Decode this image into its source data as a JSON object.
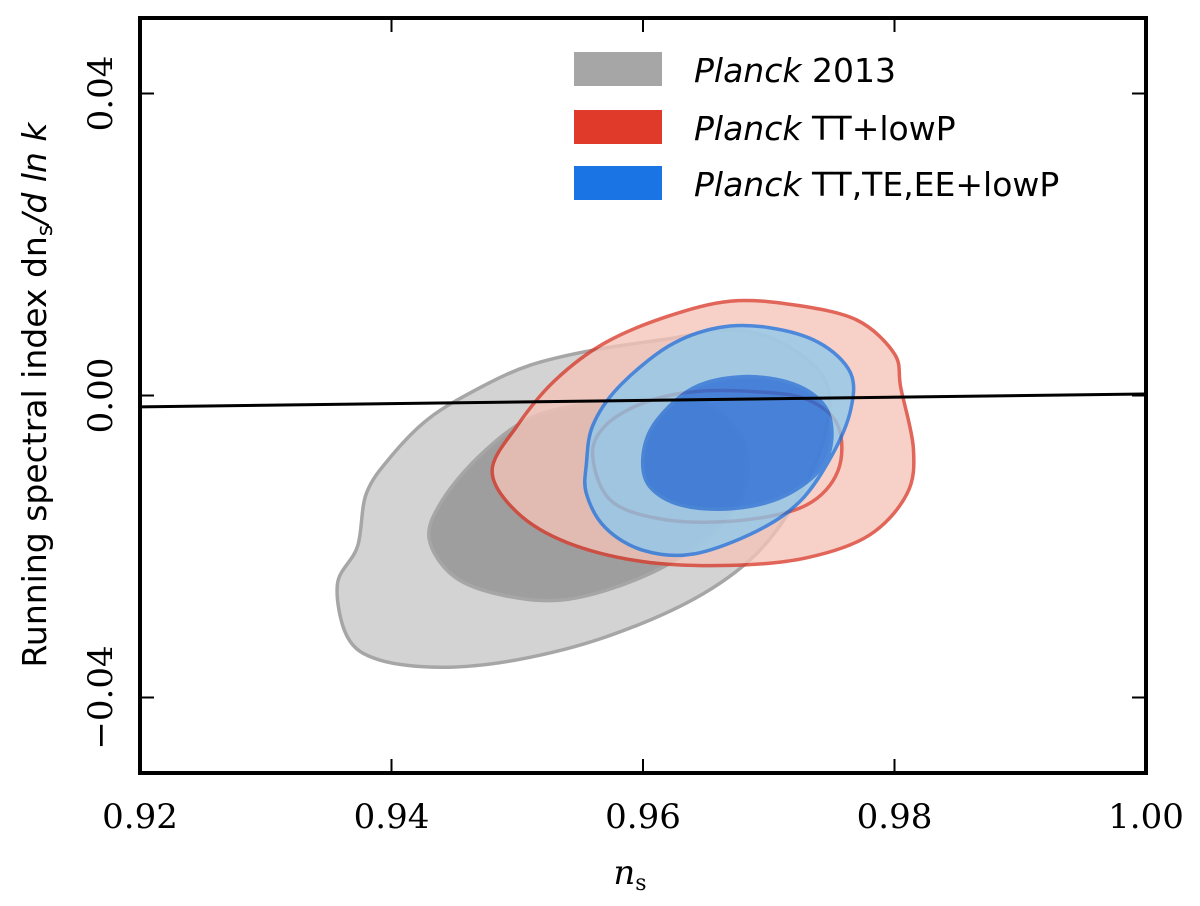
{
  "chart_data": {
    "type": "contour",
    "xlabel": "n",
    "xlabel_subscript": "s",
    "ylabel": "Running spectral index dn",
    "ylabel_subscript": "s",
    "ylabel_suffix": "/d ln k",
    "xlim": [
      0.92,
      1.0
    ],
    "ylim": [
      -0.05,
      0.05
    ],
    "xticks": [
      0.92,
      0.94,
      0.96,
      0.98,
      1.0
    ],
    "xtick_labels": [
      "0.92",
      "0.94",
      "0.96",
      "0.98",
      "1.00"
    ],
    "yticks": [
      -0.04,
      0.0,
      0.04
    ],
    "ytick_labels": [
      "−0.04",
      "0.00",
      "0.04"
    ],
    "reference_line": {
      "x": [
        0.92,
        1.0
      ],
      "y": [
        -0.0015,
        0.0002
      ]
    },
    "legend": [
      {
        "italic": "Planck",
        "text": " 2013",
        "color": "#a6a6a6"
      },
      {
        "italic": "Planck",
        "text": " TT+lowP",
        "color": "#e03a2a"
      },
      {
        "italic": "Planck",
        "text": " TT,TE,EE+lowP",
        "color": "#1a74e3"
      }
    ],
    "series": [
      {
        "name": "Planck 2013",
        "line_color": "#a6a6a6",
        "outer_fill": "#d3d3d3",
        "inner_fill": "#9e9e9e",
        "outer_2sigma": [
          [
            0.9357,
            -0.025
          ],
          [
            0.9373,
            -0.02
          ],
          [
            0.938,
            -0.013
          ],
          [
            0.94,
            -0.008
          ],
          [
            0.943,
            -0.003
          ],
          [
            0.947,
            0.001
          ],
          [
            0.951,
            0.004
          ],
          [
            0.956,
            0.006
          ],
          [
            0.962,
            0.0075
          ],
          [
            0.967,
            0.0087
          ],
          [
            0.971,
            0.007
          ],
          [
            0.9745,
            0.002
          ],
          [
            0.9745,
            -0.005
          ],
          [
            0.9725,
            -0.013
          ],
          [
            0.969,
            -0.021
          ],
          [
            0.964,
            -0.027
          ],
          [
            0.957,
            -0.032
          ],
          [
            0.95,
            -0.035
          ],
          [
            0.944,
            -0.036
          ],
          [
            0.939,
            -0.035
          ],
          [
            0.9365,
            -0.032
          ],
          [
            0.9357,
            -0.025
          ]
        ],
        "inner_1sigma": [
          [
            0.943,
            -0.019
          ],
          [
            0.944,
            -0.014
          ],
          [
            0.947,
            -0.008
          ],
          [
            0.951,
            -0.003
          ],
          [
            0.956,
            -0.001
          ],
          [
            0.961,
            -0.0003
          ],
          [
            0.965,
            -0.001
          ],
          [
            0.968,
            -0.006
          ],
          [
            0.968,
            -0.013
          ],
          [
            0.965,
            -0.019
          ],
          [
            0.96,
            -0.024
          ],
          [
            0.954,
            -0.027
          ],
          [
            0.949,
            -0.0265
          ],
          [
            0.945,
            -0.024
          ],
          [
            0.943,
            -0.019
          ]
        ]
      },
      {
        "name": "Planck TT+lowP",
        "line_color": "#d93a2b",
        "outer_fill": "#f5c4b8",
        "inner_fill": "none",
        "outer_2sigma": [
          [
            0.948,
            -0.01
          ],
          [
            0.95,
            -0.004
          ],
          [
            0.953,
            0.002
          ],
          [
            0.957,
            0.007
          ],
          [
            0.962,
            0.0105
          ],
          [
            0.967,
            0.0125
          ],
          [
            0.972,
            0.012
          ],
          [
            0.977,
            0.01
          ],
          [
            0.98,
            0.0055
          ],
          [
            0.9805,
            0.001
          ],
          [
            0.9815,
            -0.007
          ],
          [
            0.981,
            -0.013
          ],
          [
            0.978,
            -0.0185
          ],
          [
            0.973,
            -0.0215
          ],
          [
            0.967,
            -0.0225
          ],
          [
            0.96,
            -0.022
          ],
          [
            0.954,
            -0.0195
          ],
          [
            0.95,
            -0.0155
          ],
          [
            0.948,
            -0.01
          ]
        ],
        "inner_1sigma": [
          [
            0.956,
            -0.008
          ],
          [
            0.957,
            -0.004
          ],
          [
            0.96,
            -0.001
          ],
          [
            0.964,
            0.0005
          ],
          [
            0.969,
            0.0005
          ],
          [
            0.973,
            -0.0005
          ],
          [
            0.9755,
            -0.004
          ],
          [
            0.9755,
            -0.01
          ],
          [
            0.973,
            -0.0145
          ],
          [
            0.968,
            -0.0165
          ],
          [
            0.962,
            -0.0165
          ],
          [
            0.9575,
            -0.014
          ],
          [
            0.956,
            -0.008
          ]
        ]
      },
      {
        "name": "Planck TT,TE,EE+lowP",
        "line_color": "#1f75e0",
        "outer_fill": "#8ec9ed",
        "inner_fill": "#1a6fe0",
        "outer_2sigma": [
          [
            0.9555,
            -0.009
          ],
          [
            0.956,
            -0.004
          ],
          [
            0.958,
            0.001
          ],
          [
            0.962,
            0.0065
          ],
          [
            0.966,
            0.009
          ],
          [
            0.97,
            0.009
          ],
          [
            0.974,
            0.007
          ],
          [
            0.9765,
            0.003
          ],
          [
            0.9765,
            -0.002
          ],
          [
            0.975,
            -0.008
          ],
          [
            0.9725,
            -0.014
          ],
          [
            0.969,
            -0.018
          ],
          [
            0.964,
            -0.021
          ],
          [
            0.96,
            -0.0205
          ],
          [
            0.957,
            -0.0175
          ],
          [
            0.9555,
            -0.013
          ],
          [
            0.9555,
            -0.009
          ]
        ],
        "inner_1sigma": [
          [
            0.96,
            -0.008
          ],
          [
            0.961,
            -0.0035
          ],
          [
            0.964,
            0.001
          ],
          [
            0.968,
            0.0025
          ],
          [
            0.972,
            0.0015
          ],
          [
            0.9745,
            -0.0015
          ],
          [
            0.975,
            -0.006
          ],
          [
            0.974,
            -0.01
          ],
          [
            0.971,
            -0.0135
          ],
          [
            0.967,
            -0.015
          ],
          [
            0.963,
            -0.0145
          ],
          [
            0.9605,
            -0.012
          ],
          [
            0.96,
            -0.008
          ]
        ]
      }
    ]
  }
}
